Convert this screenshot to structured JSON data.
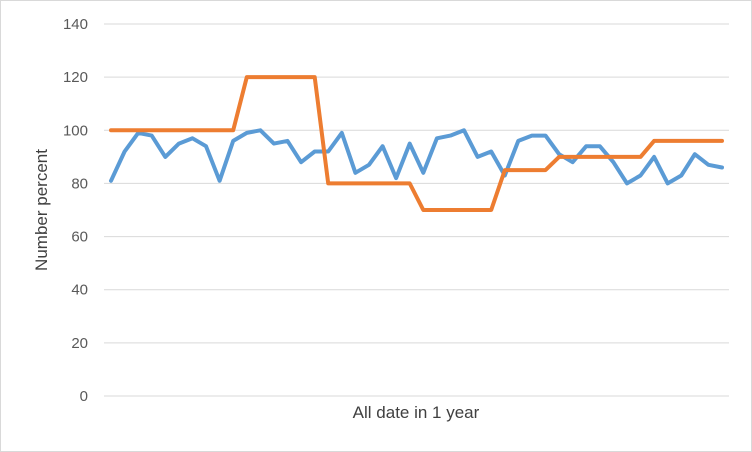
{
  "chart_data": {
    "type": "line",
    "title": "",
    "xlabel": "All date in 1 year",
    "ylabel": "Number percent",
    "ylim": [
      0,
      140
    ],
    "yticks": [
      "0",
      "20",
      "40",
      "60",
      "80",
      "100",
      "120",
      "140"
    ],
    "grid": true,
    "legend": "none",
    "series": [
      {
        "color": "#5b9bd5",
        "values": [
          81,
          92,
          99,
          98,
          90,
          95,
          97,
          94,
          81,
          96,
          99,
          100,
          95,
          96,
          88,
          92,
          92,
          99,
          84,
          87,
          94,
          82,
          95,
          84,
          97,
          98,
          100,
          90,
          92,
          83,
          96,
          98,
          98,
          91,
          88,
          94,
          94,
          88,
          80,
          83,
          90,
          80,
          83,
          91,
          87,
          86
        ]
      },
      {
        "color": "#ed7d31",
        "values": [
          100,
          100,
          100,
          100,
          100,
          100,
          100,
          100,
          100,
          100,
          120,
          120,
          120,
          120,
          120,
          120,
          80,
          80,
          80,
          80,
          80,
          80,
          80,
          70,
          70,
          70,
          70,
          70,
          70,
          85,
          85,
          85,
          85,
          90,
          90,
          90,
          90,
          90,
          90,
          90,
          96,
          96,
          96,
          96,
          96,
          96
        ]
      }
    ]
  }
}
